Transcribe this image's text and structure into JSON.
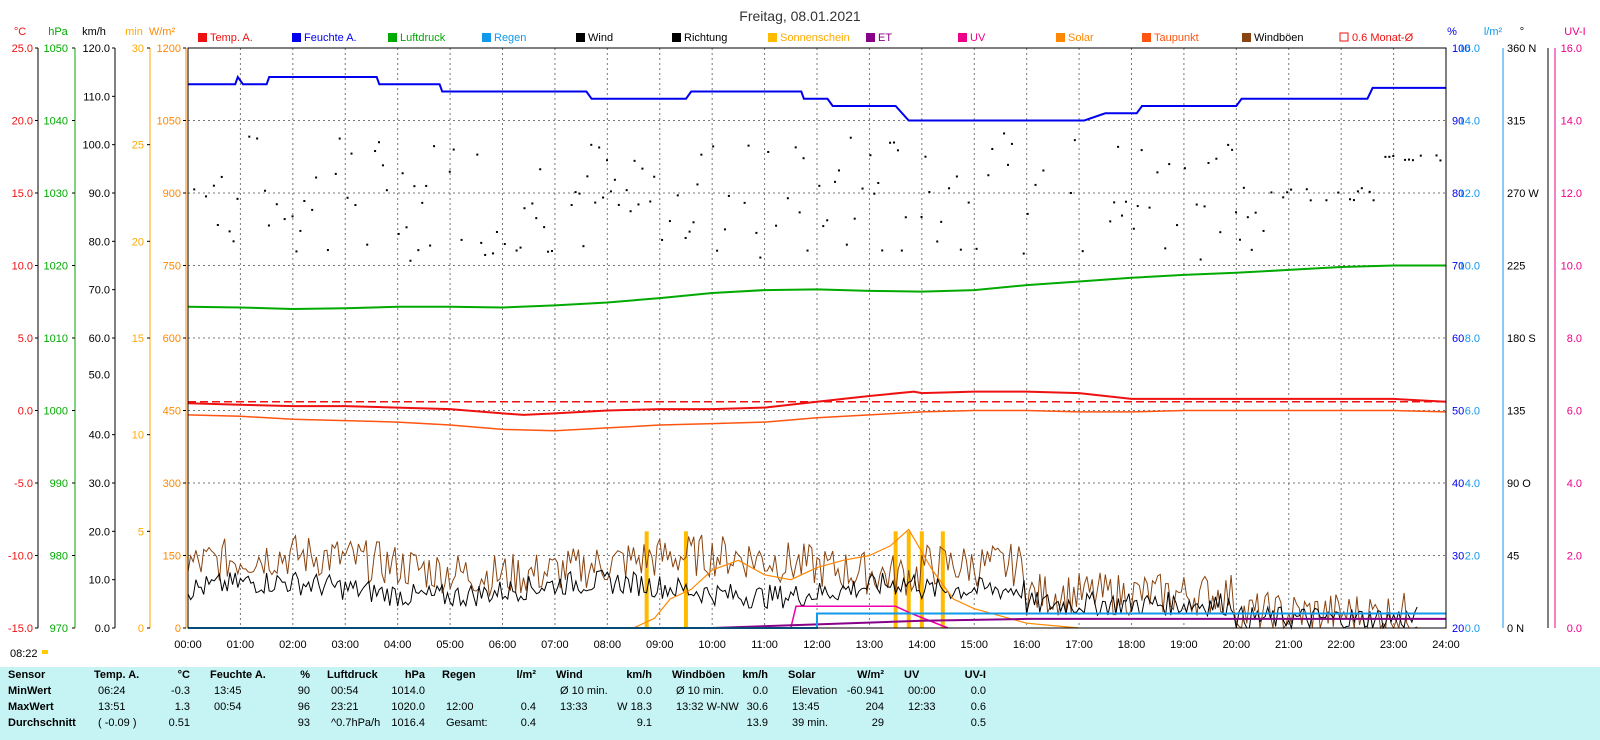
{
  "title": "Freitag, 08.01.2021",
  "colors": {
    "temp": "#ee1111",
    "humidity": "#0000ee",
    "pressure": "#00aa00",
    "rain": "#1199ee",
    "wind": "#000000",
    "direction": "#000000",
    "sunshine": "#ffbb00",
    "et": "#880088",
    "uv": "#ee00aa",
    "solar": "#ff8800",
    "dewpoint": "#ff5511",
    "gust": "#884411",
    "avg": "#ee1111"
  },
  "legend": [
    {
      "label": "Temp. A.",
      "color": "#ee1111",
      "style": "fill"
    },
    {
      "label": "Feuchte A.",
      "color": "#0000ee",
      "style": "fill"
    },
    {
      "label": "Luftdruck",
      "color": "#00aa00",
      "style": "fill"
    },
    {
      "label": "Regen",
      "color": "#1199ee",
      "style": "fill"
    },
    {
      "label": "Wind",
      "color": "#000000",
      "style": "fill"
    },
    {
      "label": "Richtung",
      "color": "#000000",
      "style": "fill"
    },
    {
      "label": "Sonnenschein",
      "color": "#ffbb00",
      "style": "fill"
    },
    {
      "label": "ET",
      "color": "#880088",
      "style": "fill"
    },
    {
      "label": "UV",
      "color": "#ee0088",
      "style": "fill"
    },
    {
      "label": "Solar",
      "color": "#ff8800",
      "style": "fill"
    },
    {
      "label": "Taupunkt",
      "color": "#ff5511",
      "style": "fill"
    },
    {
      "label": "Windböen",
      "color": "#884411",
      "style": "fill"
    },
    {
      "label": "0.6 Monat-Ø",
      "color": "#ee1111",
      "style": "outline"
    }
  ],
  "axes_left": [
    {
      "unit": "°C",
      "color": "#ee1111",
      "ticks": [
        "25.0",
        "20.0",
        "15.0",
        "10.0",
        "5.0",
        "0.0",
        "-5.0",
        "-10.0",
        "-15.0"
      ]
    },
    {
      "unit": "hPa",
      "color": "#00aa00",
      "ticks": [
        "1050",
        "1040",
        "1030",
        "1020",
        "1010",
        "1000",
        "990",
        "980",
        "970"
      ]
    },
    {
      "unit": "km/h",
      "color": "#000000",
      "ticks": [
        "120.0",
        "110.0",
        "100.0",
        "90.0",
        "80.0",
        "70.0",
        "60.0",
        "50.0",
        "40.0",
        "30.0",
        "20.0",
        "10.0",
        "0.0"
      ]
    },
    {
      "unit": "min",
      "color": "#ffaa00",
      "ticks": [
        "30",
        "25",
        "20",
        "15",
        "10",
        "5",
        "0"
      ]
    },
    {
      "unit": "W/m²",
      "color": "#ff8800",
      "ticks": [
        "1200",
        "1050",
        "900",
        "750",
        "600",
        "450",
        "300",
        "150",
        "0"
      ]
    }
  ],
  "axes_right": [
    {
      "unit": "%",
      "color": "#0000ee",
      "ticks": [
        "100",
        "90",
        "80",
        "70",
        "60",
        "50",
        "40",
        "30",
        "20"
      ]
    },
    {
      "unit": "l/m²",
      "color": "#1199ee",
      "ticks": [
        "16.0",
        "14.0",
        "12.0",
        "10.0",
        "8.0",
        "6.0",
        "4.0",
        "2.0",
        "0.0"
      ]
    },
    {
      "unit": "°",
      "color": "#000000",
      "ticks": [
        "360 N",
        "315",
        "270 W",
        "225",
        "180 S",
        "135",
        "90 O",
        "45",
        "0 N"
      ]
    },
    {
      "unit": "UV-I",
      "color": "#ee0088",
      "ticks": [
        "16.0",
        "14.0",
        "12.0",
        "10.0",
        "8.0",
        "6.0",
        "4.0",
        "2.0",
        "0.0"
      ]
    }
  ],
  "x_ticks": [
    "00:00",
    "01:00",
    "02:00",
    "03:00",
    "04:00",
    "05:00",
    "06:00",
    "07:00",
    "08:00",
    "09:00",
    "10:00",
    "11:00",
    "12:00",
    "13:00",
    "14:00",
    "15:00",
    "16:00",
    "17:00",
    "18:00",
    "19:00",
    "20:00",
    "21:00",
    "22:00",
    "23:00",
    "24:00"
  ],
  "sunrise": "08:22",
  "chart_data": {
    "type": "line",
    "title": "Freitag, 08.01.2021",
    "x_unit": "hour",
    "xlim": [
      0,
      24
    ],
    "grid": true,
    "series": [
      {
        "name": "Temp. A.",
        "unit": "°C",
        "points": [
          [
            0,
            0.5
          ],
          [
            1,
            0.4
          ],
          [
            2,
            0.3
          ],
          [
            3,
            0.3
          ],
          [
            4,
            0.2
          ],
          [
            5,
            0.1
          ],
          [
            6,
            -0.2
          ],
          [
            6.4,
            -0.3
          ],
          [
            7,
            -0.2
          ],
          [
            8,
            0.0
          ],
          [
            9,
            0.1
          ],
          [
            10,
            0.1
          ],
          [
            11,
            0.2
          ],
          [
            12,
            0.6
          ],
          [
            13,
            1.0
          ],
          [
            13.85,
            1.3
          ],
          [
            14,
            1.2
          ],
          [
            15,
            1.3
          ],
          [
            16,
            1.3
          ],
          [
            17,
            1.2
          ],
          [
            18,
            0.8
          ],
          [
            19,
            0.8
          ],
          [
            20,
            0.8
          ],
          [
            21,
            0.8
          ],
          [
            22,
            0.8
          ],
          [
            23,
            0.8
          ],
          [
            24,
            0.6
          ]
        ]
      },
      {
        "name": "Taupunkt",
        "unit": "°C",
        "points": [
          [
            0,
            -0.3
          ],
          [
            1,
            -0.4
          ],
          [
            2,
            -0.6
          ],
          [
            3,
            -0.7
          ],
          [
            4,
            -0.8
          ],
          [
            5,
            -1.0
          ],
          [
            6,
            -1.3
          ],
          [
            7,
            -1.4
          ],
          [
            8,
            -1.2
          ],
          [
            9,
            -1.0
          ],
          [
            10,
            -0.9
          ],
          [
            11,
            -0.8
          ],
          [
            12,
            -0.5
          ],
          [
            13,
            -0.3
          ],
          [
            14,
            -0.1
          ],
          [
            15,
            0.0
          ],
          [
            16,
            0.0
          ],
          [
            17,
            -0.1
          ],
          [
            18,
            -0.1
          ],
          [
            19,
            0.0
          ],
          [
            20,
            0.0
          ],
          [
            21,
            0.0
          ],
          [
            22,
            0.0
          ],
          [
            23,
            0.0
          ],
          [
            24,
            -0.1
          ]
        ]
      },
      {
        "name": "Feuchte A.",
        "unit": "%",
        "points": [
          [
            0,
            95
          ],
          [
            0.9,
            95
          ],
          [
            0.95,
            96
          ],
          [
            1.05,
            95
          ],
          [
            1.5,
            95
          ],
          [
            1.55,
            96
          ],
          [
            3.6,
            96
          ],
          [
            3.65,
            95
          ],
          [
            4.8,
            95
          ],
          [
            4.85,
            94
          ],
          [
            7.6,
            94
          ],
          [
            7.7,
            93
          ],
          [
            9.5,
            93
          ],
          [
            9.6,
            94
          ],
          [
            11.7,
            94
          ],
          [
            11.75,
            93
          ],
          [
            12.2,
            93
          ],
          [
            12.3,
            92
          ],
          [
            13.5,
            92
          ],
          [
            13.75,
            90
          ],
          [
            17.1,
            90
          ],
          [
            17.5,
            91
          ],
          [
            18.1,
            91
          ],
          [
            18.2,
            92
          ],
          [
            20.0,
            92
          ],
          [
            20.1,
            93
          ],
          [
            22.5,
            93
          ],
          [
            22.6,
            94.5
          ],
          [
            24,
            94.5
          ]
        ]
      },
      {
        "name": "Luftdruck",
        "unit": "hPa",
        "points": [
          [
            0,
            1014.3
          ],
          [
            1,
            1014.2
          ],
          [
            2,
            1014.0
          ],
          [
            3,
            1014.1
          ],
          [
            4,
            1014.3
          ],
          [
            5,
            1014.3
          ],
          [
            6,
            1014.2
          ],
          [
            7,
            1014.5
          ],
          [
            8,
            1014.9
          ],
          [
            9,
            1015.5
          ],
          [
            10,
            1016.2
          ],
          [
            11,
            1016.6
          ],
          [
            12,
            1016.7
          ],
          [
            13,
            1016.5
          ],
          [
            14,
            1016.4
          ],
          [
            15,
            1016.6
          ],
          [
            16,
            1017.3
          ],
          [
            17,
            1017.8
          ],
          [
            18,
            1018.3
          ],
          [
            19,
            1018.7
          ],
          [
            20,
            1019.0
          ],
          [
            21,
            1019.4
          ],
          [
            22,
            1019.8
          ],
          [
            23,
            1020.0
          ],
          [
            23.35,
            1020.0
          ],
          [
            24,
            1020.0
          ]
        ]
      },
      {
        "name": "Wind",
        "unit": "km/h",
        "average": 9.1,
        "max": 18.3,
        "max_time": "13:33"
      },
      {
        "name": "Windböen",
        "unit": "km/h",
        "average": 13.9,
        "max": 30.6,
        "max_time": "13:32"
      },
      {
        "name": "Richtung",
        "unit": "°",
        "note": "scatter, mostly between 225 and 315"
      },
      {
        "name": "Solar",
        "unit": "W/m²",
        "points": [
          [
            8.5,
            0
          ],
          [
            8.9,
            20
          ],
          [
            9.2,
            60
          ],
          [
            9.6,
            80
          ],
          [
            10.0,
            120
          ],
          [
            10.5,
            140
          ],
          [
            11.0,
            110
          ],
          [
            11.5,
            100
          ],
          [
            12.0,
            125
          ],
          [
            12.5,
            140
          ],
          [
            13.0,
            150
          ],
          [
            13.4,
            170
          ],
          [
            13.75,
            204
          ],
          [
            14.2,
            120
          ],
          [
            14.6,
            60
          ],
          [
            15.0,
            40
          ],
          [
            15.5,
            25
          ],
          [
            16.0,
            10
          ],
          [
            16.5,
            5
          ],
          [
            17.0,
            0
          ]
        ]
      },
      {
        "name": "Sonnenschein",
        "unit": "min",
        "points": [
          [
            8.75,
            5
          ],
          [
            9.5,
            5
          ],
          [
            13.5,
            5
          ],
          [
            13.75,
            5
          ],
          [
            14.0,
            5
          ],
          [
            14.4,
            5
          ]
        ]
      },
      {
        "name": "UV",
        "unit": "UV-I",
        "points": [
          [
            11.5,
            0
          ],
          [
            11.6,
            0.6
          ],
          [
            12.0,
            0.6
          ],
          [
            12.5,
            0.6
          ],
          [
            13.5,
            0.6
          ],
          [
            13.8,
            0.4
          ],
          [
            14.5,
            0.0
          ]
        ]
      },
      {
        "name": "ET",
        "unit": "l/m²",
        "points": [
          [
            10.0,
            0.0
          ],
          [
            12.0,
            0.1
          ],
          [
            14.0,
            0.2
          ],
          [
            16.0,
            0.25
          ],
          [
            24,
            0.25
          ]
        ]
      },
      {
        "name": "Regen",
        "unit": "l/m²",
        "points": [
          [
            0,
            0
          ],
          [
            12.0,
            0
          ],
          [
            12.0,
            0.4
          ],
          [
            24,
            0.4
          ]
        ]
      },
      {
        "name": "0.6 Monat-Ø",
        "unit": "°C",
        "constant": 0.6
      }
    ]
  },
  "stats": {
    "columns": [
      {
        "header": "Sensor",
        "rows": [
          "MinWert",
          "MaxWert",
          "Durchschnitt"
        ]
      },
      {
        "header": "Temp. A.",
        "unit": "°C",
        "times": [
          "06:24",
          "13:51",
          "( -0.09 )"
        ],
        "values": [
          "-0.3",
          "1.3",
          "0.51"
        ]
      },
      {
        "header": "Feuchte A.",
        "unit": "%",
        "times": [
          "13:45",
          "00:54",
          ""
        ],
        "values": [
          "90",
          "96",
          "93"
        ]
      },
      {
        "header": "Luftdruck",
        "unit": "hPa",
        "times": [
          "00:54",
          "23:21",
          "^0.7hPa/h"
        ],
        "values": [
          "1014.0",
          "1020.0",
          "1016.4"
        ]
      },
      {
        "header": "Regen",
        "unit": "l/m²",
        "times": [
          "",
          "12:00",
          "Gesamt:"
        ],
        "values": [
          "",
          "0.4",
          "0.4"
        ]
      },
      {
        "header": "Wind",
        "unit": "km/h",
        "times": [
          "Ø 10 min.",
          "13:33",
          ""
        ],
        "values": [
          "0.0",
          "W 18.3",
          "9.1"
        ]
      },
      {
        "header": "Windböen",
        "unit": "km/h",
        "times": [
          "Ø 10 min.",
          "13:32  W-NW",
          ""
        ],
        "values": [
          "0.0",
          "30.6",
          "13.9"
        ]
      },
      {
        "header": "Solar",
        "unit": "W/m²",
        "times": [
          "Elevation",
          "13:45",
          "39 min."
        ],
        "values": [
          "-60.941",
          "204",
          "29"
        ]
      },
      {
        "header": "UV",
        "unit": "UV-I",
        "times": [
          "00:00",
          "12:33",
          ""
        ],
        "values": [
          "0.0",
          "0.6",
          "0.5"
        ]
      }
    ]
  }
}
